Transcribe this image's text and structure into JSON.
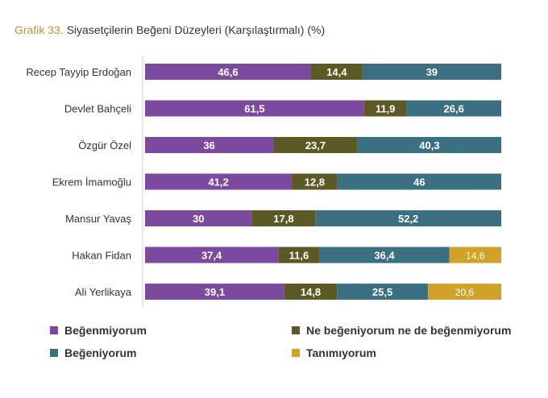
{
  "title": {
    "prefix": "Grafik 33.",
    "text": "Siyasetçilerin Beğeni Düzeyleri (Karşılaştırmalı) (%)"
  },
  "chart_data": {
    "type": "bar",
    "orientation": "horizontal",
    "stacked": true,
    "categories": [
      "Recep Tayyip Erdoğan",
      "Devlet Bahçeli",
      "Özgür Özel",
      "Ekrem İmamoğlu",
      "Mansur Yavaş",
      "Hakan Fidan",
      "Ali Yerlikaya"
    ],
    "series": [
      {
        "name": "Beğenmiyorum",
        "color": "#7b4a9e",
        "values": [
          46.6,
          61.5,
          36,
          41.2,
          30,
          37.4,
          39.1
        ],
        "labels": [
          "46,6",
          "61,5",
          "36",
          "41,2",
          "30",
          "37,4",
          "39,1"
        ]
      },
      {
        "name": "Ne beğeniyorum ne de beğenmiyorum",
        "color": "#5b5a24",
        "values": [
          14.4,
          11.9,
          23.7,
          12.8,
          17.8,
          11.6,
          14.8
        ],
        "labels": [
          "14,4",
          "11,9",
          "23,7",
          "12,8",
          "17,8",
          "11,6",
          "14,8"
        ]
      },
      {
        "name": "Beğeniyorum",
        "color": "#3b6f82",
        "values": [
          39,
          26.6,
          40.3,
          46,
          52.2,
          36.4,
          25.5
        ],
        "labels": [
          "39",
          "26,6",
          "40,3",
          "46",
          "52,2",
          "36,4",
          "25,5"
        ]
      },
      {
        "name": "Tanımıyorum",
        "color": "#d0a22a",
        "values": [
          0,
          0,
          0,
          0,
          0,
          14.6,
          20.6
        ],
        "labels": [
          "",
          "",
          "",
          "",
          "",
          "14,6",
          "20,6"
        ]
      }
    ],
    "xlim": [
      0,
      100
    ],
    "legend_position": "bottom"
  }
}
